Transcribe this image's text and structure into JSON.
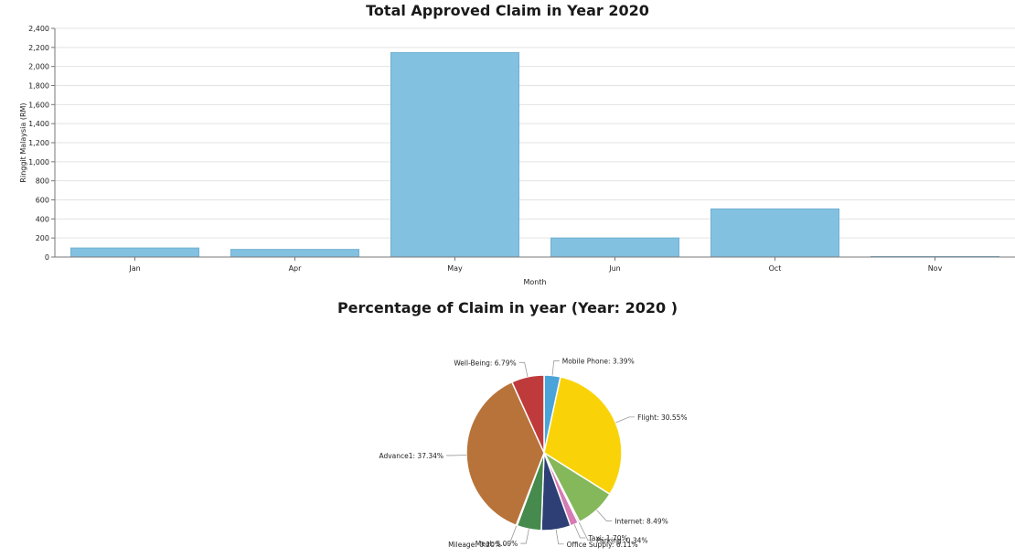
{
  "chart_data": [
    {
      "type": "bar",
      "title": "Total Approved Claim in Year 2020",
      "xlabel": "Month",
      "ylabel": "Ringgit Malaysia (RM)",
      "categories": [
        "Jan",
        "Apr",
        "May",
        "Jun",
        "Oct",
        "Nov"
      ],
      "values": [
        95,
        80,
        2145,
        200,
        505,
        5
      ],
      "ylim": [
        0,
        2400
      ],
      "yticks": [
        0,
        200,
        400,
        600,
        800,
        1000,
        1200,
        1400,
        1600,
        1800,
        2000,
        2200,
        2400
      ],
      "ytick_labels": [
        "0",
        "200",
        "400",
        "600",
        "800",
        "1,000",
        "1,200",
        "1,400",
        "1,600",
        "1,800",
        "2,000",
        "2,200",
        "2,400"
      ],
      "grid": true,
      "color": "#82c1e0"
    },
    {
      "type": "pie",
      "title": "Percentage of Claim in year (Year: 2020 )",
      "slices": [
        {
          "label": "Mobile Phone: 3.39%",
          "value": 3.39,
          "color": "#4aa3d9"
        },
        {
          "label": "Flight: 30.55%",
          "value": 30.55,
          "color": "#f9d308"
        },
        {
          "label": "Internet: 8.49%",
          "value": 8.49,
          "color": "#85b75b"
        },
        {
          "label": "Parking: 0.34%",
          "value": 0.34,
          "color": "#9b59b6"
        },
        {
          "label": "Taxi: 1.70%",
          "value": 1.7,
          "color": "#d77bb4"
        },
        {
          "label": "Office Supply: 6.11%",
          "value": 6.11,
          "color": "#2d3f75"
        },
        {
          "label": "Meal: 5.09%",
          "value": 5.09,
          "color": "#468a4d"
        },
        {
          "label": "Mileage: 0.20%",
          "value": 0.2,
          "color": "#6a8b47"
        },
        {
          "label": "Advance1: 37.34%",
          "value": 37.34,
          "color": "#b8733a"
        },
        {
          "label": "Well-Being: 6.79%",
          "value": 6.79,
          "color": "#bf3b3b"
        }
      ]
    }
  ]
}
